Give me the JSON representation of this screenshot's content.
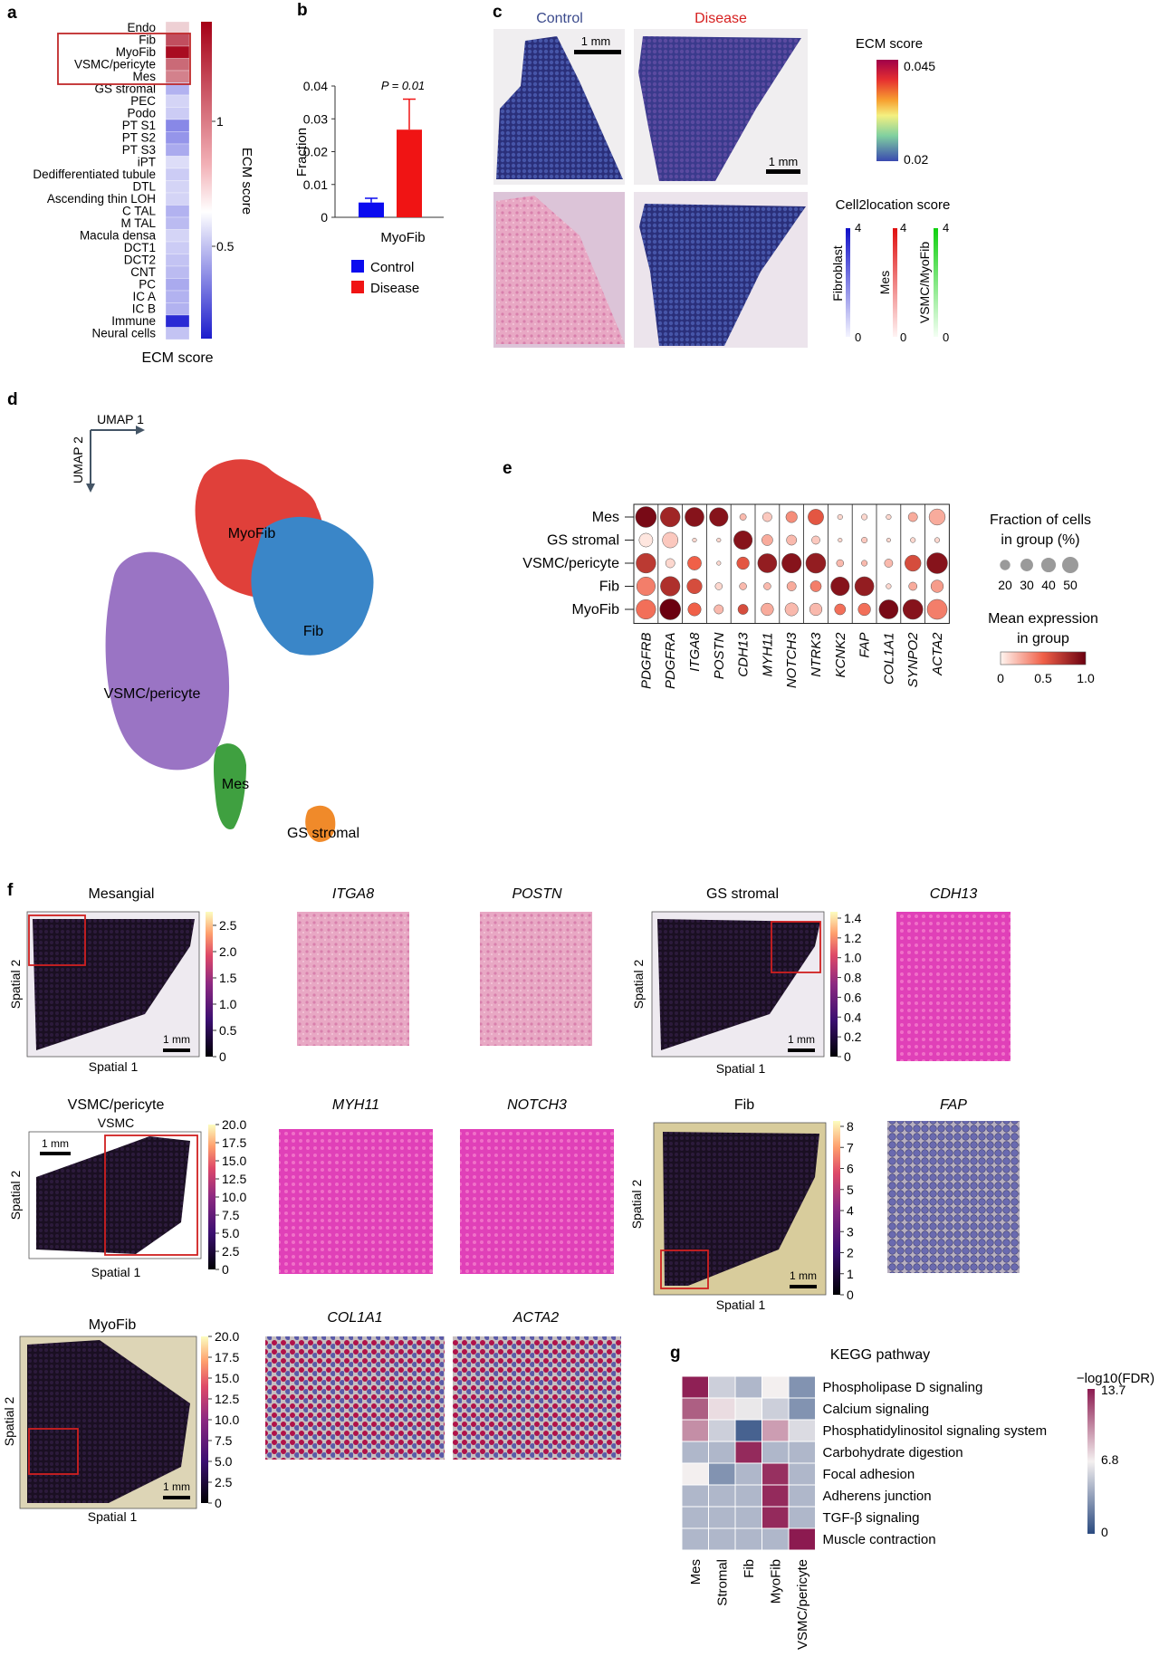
{
  "panel_letters": {
    "a": "a",
    "b": "b",
    "c": "c",
    "d": "d",
    "e": "e",
    "f": "f",
    "g": "g"
  },
  "chart_data": [
    {
      "panel": "a",
      "type": "heatmap",
      "xlabel": "ECM score",
      "colorbar_label": "ECM score",
      "colorbar_ticks": [
        "1",
        "0.5"
      ],
      "colors": {
        "high": "#a50016",
        "mid": "#ffffff",
        "low": "#2a2ad4"
      },
      "rows": [
        "Endo",
        "Fib",
        "MyoFib",
        "VSMC/pericyte",
        "Mes",
        "GS stromal",
        "PEC",
        "Podo",
        "PT S1",
        "PT S2",
        "PT S3",
        "iPT",
        "Dedifferentiated tubule",
        "DTL",
        "Ascending thin LOH",
        "C TAL",
        "M TAL",
        "Macula densa",
        "DCT1",
        "DCT2",
        "CNT",
        "PC",
        "IC A",
        "IC B",
        "Immune",
        "Neural cells"
      ],
      "values": [
        0.92,
        1.25,
        1.42,
        1.18,
        1.12,
        0.62,
        0.7,
        0.68,
        0.52,
        0.55,
        0.6,
        0.72,
        0.68,
        0.7,
        0.7,
        0.62,
        0.64,
        0.7,
        0.68,
        0.66,
        0.64,
        0.6,
        0.62,
        0.62,
        0.3,
        0.66
      ]
    },
    {
      "panel": "b",
      "type": "bar",
      "ylabel": "Fraction",
      "categories": [
        "MyoFib"
      ],
      "series": [
        {
          "name": "Control",
          "values": [
            0.0045
          ],
          "error": [
            0.0013
          ],
          "color": "#0b0bef"
        },
        {
          "name": "Disease",
          "values": [
            0.0267
          ],
          "error": [
            0.0093
          ],
          "color": "#f01414"
        }
      ],
      "ylim": [
        0,
        0.04
      ],
      "yticks": [
        "0",
        "0.01",
        "0.02",
        "0.03",
        "0.04"
      ],
      "annotation": "P = 0.01"
    },
    {
      "panel": "e",
      "type": "scatter",
      "subtype": "dotplot",
      "rows": [
        "Mes",
        "GS stromal",
        "VSMC/pericyte",
        "Fib",
        "MyoFib"
      ],
      "genes": [
        "PDGFRB",
        "PDGFRA",
        "ITGA8",
        "POSTN",
        "CDH13",
        "MYH11",
        "NOTCH3",
        "NTRK3",
        "KCNK2",
        "FAP",
        "COL1A1",
        "SYNPO2",
        "ACTA2"
      ],
      "fraction": [
        [
          50,
          45,
          42,
          40,
          5,
          10,
          15,
          28,
          3,
          4,
          3,
          10,
          30
        ],
        [
          22,
          28,
          2,
          2,
          40,
          14,
          12,
          8,
          2,
          4,
          2,
          3,
          3
        ],
        [
          45,
          10,
          22,
          2,
          18,
          42,
          44,
          46,
          6,
          4,
          8,
          30,
          50
        ],
        [
          40,
          44,
          26,
          6,
          6,
          6,
          10,
          14,
          40,
          42,
          3,
          8,
          18
        ],
        [
          44,
          50,
          20,
          10,
          12,
          18,
          20,
          18,
          14,
          18,
          42,
          46,
          46
        ]
      ],
      "expression": [
        [
          0.95,
          0.8,
          0.9,
          0.9,
          0.2,
          0.15,
          0.35,
          0.55,
          0.1,
          0.1,
          0.1,
          0.25,
          0.25
        ],
        [
          0.05,
          0.15,
          0.1,
          0.1,
          0.9,
          0.25,
          0.2,
          0.15,
          0.1,
          0.15,
          0.1,
          0.1,
          0.1
        ],
        [
          0.7,
          0.1,
          0.5,
          0.1,
          0.55,
          0.85,
          0.9,
          0.85,
          0.2,
          0.2,
          0.2,
          0.6,
          0.9
        ],
        [
          0.4,
          0.75,
          0.6,
          0.1,
          0.2,
          0.2,
          0.25,
          0.4,
          0.9,
          0.85,
          0.1,
          0.25,
          0.3
        ],
        [
          0.45,
          1.0,
          0.5,
          0.2,
          0.6,
          0.25,
          0.2,
          0.2,
          0.45,
          0.45,
          0.95,
          0.9,
          0.4
        ]
      ],
      "size_legend_title": "Fraction of cells in group (%)",
      "size_legend_values": [
        20,
        30,
        40,
        50
      ],
      "color_legend_title": "Mean expression in group",
      "color_legend_ticks": [
        "0",
        "0.5",
        "1.0"
      ]
    },
    {
      "panel": "g",
      "type": "heatmap",
      "title": "KEGG pathway",
      "columns": [
        "Mes",
        "Stromal",
        "Fib",
        "MyoFib",
        "VSMC/pericyte"
      ],
      "rows": [
        "Phospholipase D signaling",
        "Calcium signaling",
        "Phosphatidylinositol signaling system",
        "Carbohydrate digestion",
        "Focal adhesion",
        "Adherens junction",
        "TGF-β signaling",
        "Muscle contraction"
      ],
      "values": [
        [
          13.5,
          5.5,
          4.5,
          6.8,
          3.0
        ],
        [
          11.5,
          7.5,
          6.5,
          5.5,
          3.0
        ],
        [
          10.0,
          5.5,
          1.0,
          9.5,
          6.0
        ],
        [
          4.5,
          4.5,
          13.2,
          4.5,
          4.5
        ],
        [
          6.8,
          3.0,
          4.5,
          13.0,
          4.5
        ],
        [
          4.5,
          4.5,
          4.5,
          13.2,
          4.5
        ],
        [
          4.5,
          4.5,
          4.5,
          13.2,
          4.5
        ],
        [
          4.5,
          4.5,
          4.5,
          4.5,
          13.7
        ]
      ],
      "colorbar_label": "−log10(FDR)",
      "colorbar_ticks": [
        "13.7",
        "6.8",
        "0"
      ]
    }
  ],
  "panel_c": {
    "col_titles": {
      "control": "Control",
      "disease": "Disease"
    },
    "scalebar_label": "1 mm",
    "ecm_legend": {
      "title": "ECM score",
      "max": "0.045",
      "min": "0.02"
    },
    "cell2loc": {
      "title": "Cell2location score",
      "bars": [
        {
          "name": "Fibroblast",
          "max": "4",
          "min": "0",
          "color": "#1515d0"
        },
        {
          "name": "Mes",
          "max": "4",
          "min": "0",
          "color": "#e01818"
        },
        {
          "name": "VSMC/MyoFib",
          "max": "4",
          "min": "0",
          "color": "#18d018"
        }
      ]
    },
    "colors": {
      "title_control": "#3b4a8c",
      "title_disease": "#d62020"
    }
  },
  "panel_d": {
    "axis_x": "UMAP 1",
    "axis_y": "UMAP 2",
    "clusters": [
      {
        "name": "MyoFib",
        "color": "#e0403a"
      },
      {
        "name": "Fib",
        "color": "#3a86c8"
      },
      {
        "name": "VSMC/pericyte",
        "color": "#9a74c4"
      },
      {
        "name": "Mes",
        "color": "#3fa040"
      },
      {
        "name": "GS stromal",
        "color": "#f08a2a"
      }
    ]
  },
  "panel_f": {
    "titles": {
      "mesangial": "Mesangial",
      "itga8": "ITGA8",
      "postn": "POSTN",
      "gs_stromal": "GS stromal",
      "cdh13": "CDH13",
      "vsmc": "VSMC/pericyte",
      "vsmc_sub": "VSMC",
      "myh11": "MYH11",
      "notch3": "NOTCH3",
      "fib": "Fib",
      "fap": "FAP",
      "myofib": "MyoFib",
      "col1a1": "COL1A1",
      "acta2": "ACTA2"
    },
    "spatial_x": "Spatial 1",
    "spatial_y": "Spatial 2",
    "scalebar": "1 mm",
    "colorbars": {
      "mesangial": [
        "2.5",
        "2.0",
        "1.5",
        "1.0",
        "0.5",
        "0"
      ],
      "gs_stromal": [
        "1.4",
        "1.2",
        "1.0",
        "0.8",
        "0.6",
        "0.4",
        "0.2",
        "0"
      ],
      "vsmc": [
        "20.0",
        "17.5",
        "15.0",
        "12.5",
        "10.0",
        "7.5",
        "5.0",
        "2.5",
        "0"
      ],
      "fib": [
        "8",
        "7",
        "6",
        "5",
        "4",
        "3",
        "2",
        "1",
        "0"
      ],
      "myofib": [
        "20.0",
        "17.5",
        "15.0",
        "12.5",
        "10.0",
        "7.5",
        "5.0",
        "2.5",
        "0"
      ]
    }
  }
}
